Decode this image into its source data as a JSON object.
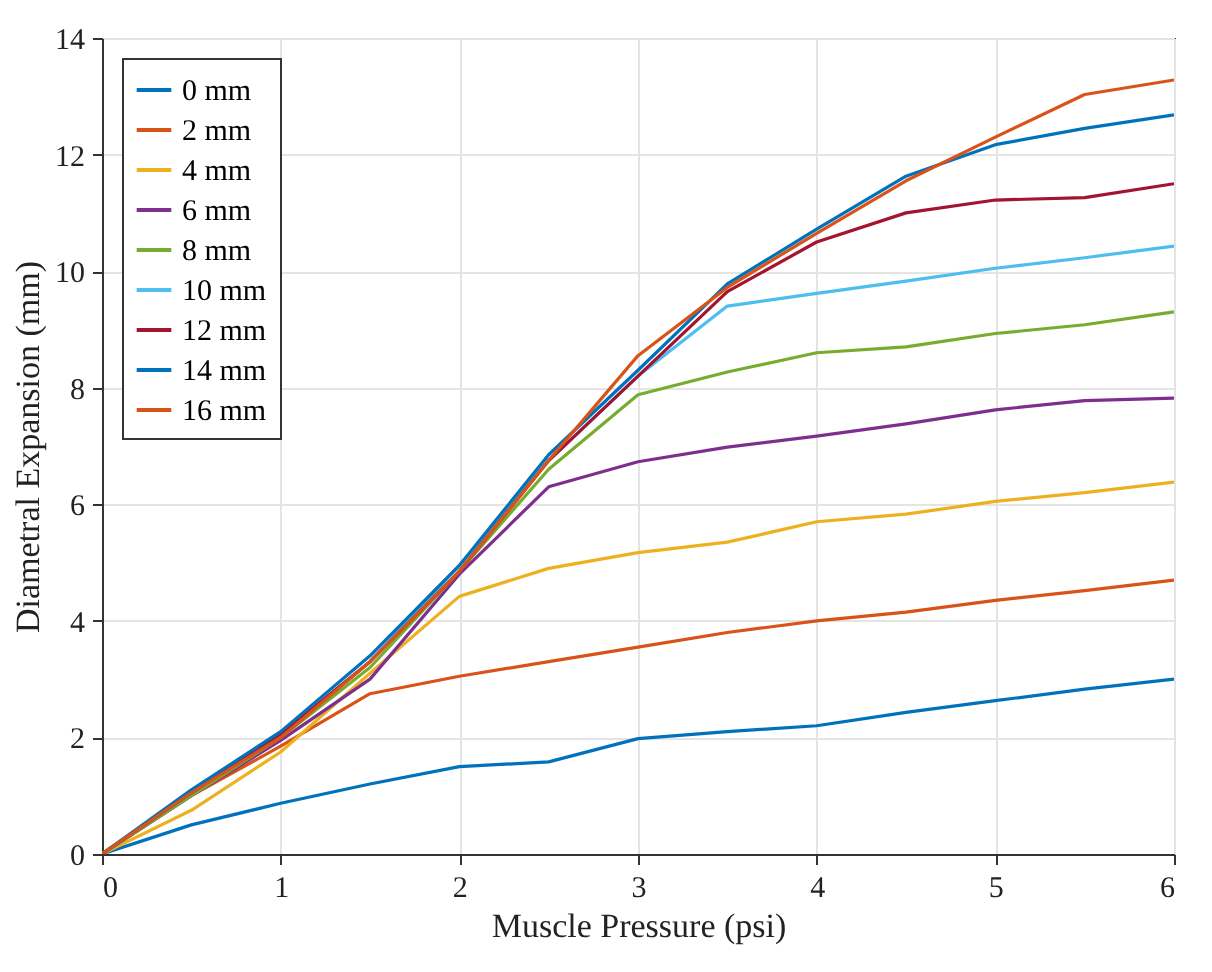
{
  "chart_data": {
    "type": "line",
    "xlabel": "Muscle Pressure (psi)",
    "ylabel": "Diametral Expansion (mm)",
    "x": [
      0,
      0.5,
      1,
      1.5,
      2,
      2.5,
      3,
      3.5,
      4,
      4.5,
      5,
      5.5,
      6
    ],
    "xlim": [
      0,
      6
    ],
    "xticks": [
      0,
      1,
      2,
      3,
      4,
      5,
      6
    ],
    "ylim": [
      0,
      14
    ],
    "yticks": [
      0,
      2,
      4,
      6,
      8,
      10,
      12,
      14
    ],
    "grid": true,
    "legend": "top left",
    "marker": "none",
    "line_style": "solid",
    "series": [
      {
        "name": "0 mm",
        "color": "#0072bd",
        "values": [
          0,
          0.5,
          0.87,
          1.2,
          1.5,
          1.58,
          1.98,
          2.1,
          2.2,
          2.43,
          2.63,
          2.83,
          3.0
        ]
      },
      {
        "name": "2 mm",
        "color": "#d95319",
        "values": [
          0,
          1.0,
          1.85,
          2.75,
          3.05,
          3.3,
          3.55,
          3.8,
          4.0,
          4.15,
          4.35,
          4.52,
          4.7
        ]
      },
      {
        "name": "4 mm",
        "color": "#edb120",
        "values": [
          0,
          0.75,
          1.75,
          3.1,
          4.42,
          4.9,
          5.17,
          5.35,
          5.7,
          5.83,
          6.05,
          6.2,
          6.38
        ]
      },
      {
        "name": "6 mm",
        "color": "#7e2f8e",
        "values": [
          0,
          1.0,
          1.95,
          3.0,
          4.8,
          6.3,
          6.73,
          6.98,
          7.17,
          7.38,
          7.62,
          7.78,
          7.82
        ]
      },
      {
        "name": "8 mm",
        "color": "#77ac30",
        "values": [
          0,
          1.0,
          2.0,
          3.2,
          4.85,
          6.6,
          7.88,
          8.27,
          8.6,
          8.7,
          8.93,
          9.08,
          9.3
        ]
      },
      {
        "name": "10 mm",
        "color": "#4dbeee",
        "values": [
          0,
          1.05,
          2.05,
          3.3,
          4.95,
          6.75,
          8.2,
          9.4,
          9.62,
          9.83,
          10.05,
          10.23,
          10.43
        ]
      },
      {
        "name": "12 mm",
        "color": "#a2142f",
        "values": [
          0,
          1.05,
          2.05,
          3.3,
          4.85,
          6.75,
          8.2,
          9.65,
          10.5,
          11.0,
          11.22,
          11.26,
          11.5
        ]
      },
      {
        "name": "14 mm",
        "color": "#0072bd",
        "values": [
          0,
          1.1,
          2.1,
          3.4,
          4.95,
          6.85,
          8.3,
          9.78,
          10.72,
          11.63,
          12.17,
          12.45,
          12.68
        ]
      },
      {
        "name": "16 mm",
        "color": "#d95319",
        "values": [
          0,
          1.05,
          2.0,
          3.3,
          4.85,
          6.75,
          8.55,
          9.72,
          10.65,
          11.55,
          12.3,
          13.03,
          13.28
        ]
      }
    ]
  }
}
